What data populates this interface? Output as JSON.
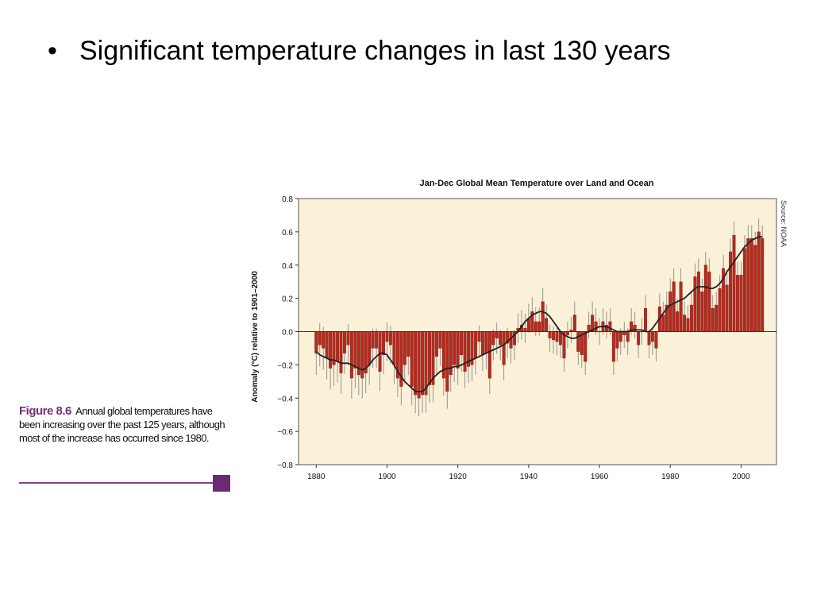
{
  "slide": {
    "bullet": "•",
    "text": "Significant temperature changes in last 130 years"
  },
  "caption": {
    "figure_label": "Figure 8.6",
    "text": "Annual global temperatures have been increasing over the past 125 years, although most of the increase has occurred since 1980."
  },
  "colors": {
    "plot_background": "#fbf1d8",
    "bar": "#b52a1e",
    "error_bar": "#8a8a8a",
    "smooth_line": "#222222",
    "caption_accent": "#7b2c7e"
  },
  "chart_data": {
    "type": "bar",
    "title": "Jan-Dec Global Mean Temperature over Land and Ocean",
    "ylabel": "Anomaly (°C) relative to 1901–2000",
    "xlabel": "",
    "source": "Source: NOAA",
    "xlim": [
      1875,
      2010
    ],
    "ylim": [
      -0.8,
      0.8
    ],
    "x_ticks": [
      1880,
      1900,
      1920,
      1940,
      1960,
      1980,
      2000
    ],
    "y_ticks": [
      0.8,
      0.6,
      0.4,
      0.2,
      0.0,
      -0.2,
      -0.4,
      -0.6,
      -0.8
    ],
    "y_tick_labels": [
      "0.8",
      "0.6",
      "0.4",
      "0.2",
      "0.0",
      "−0.2",
      "−0.4",
      "−0.6",
      "−0.8"
    ],
    "grid": false,
    "legend": "none",
    "x": [
      1880,
      1881,
      1882,
      1883,
      1884,
      1885,
      1886,
      1887,
      1888,
      1889,
      1890,
      1891,
      1892,
      1893,
      1894,
      1895,
      1896,
      1897,
      1898,
      1899,
      1900,
      1901,
      1902,
      1903,
      1904,
      1905,
      1906,
      1907,
      1908,
      1909,
      1910,
      1911,
      1912,
      1913,
      1914,
      1915,
      1916,
      1917,
      1918,
      1919,
      1920,
      1921,
      1922,
      1923,
      1924,
      1925,
      1926,
      1927,
      1928,
      1929,
      1930,
      1931,
      1932,
      1933,
      1934,
      1935,
      1936,
      1937,
      1938,
      1939,
      1940,
      1941,
      1942,
      1943,
      1944,
      1945,
      1946,
      1947,
      1948,
      1949,
      1950,
      1951,
      1952,
      1953,
      1954,
      1955,
      1956,
      1957,
      1958,
      1959,
      1960,
      1961,
      1962,
      1963,
      1964,
      1965,
      1966,
      1967,
      1968,
      1969,
      1970,
      1971,
      1972,
      1973,
      1974,
      1975,
      1976,
      1977,
      1978,
      1979,
      1980,
      1981,
      1982,
      1983,
      1984,
      1985,
      1986,
      1987,
      1988,
      1989,
      1990,
      1991,
      1992,
      1993,
      1994,
      1995,
      1996,
      1997,
      1998,
      1999,
      2000,
      2001,
      2002,
      2003,
      2004,
      2005,
      2006
    ],
    "series": [
      {
        "values": [
          -0.13,
          -0.08,
          -0.1,
          -0.16,
          -0.22,
          -0.2,
          -0.18,
          -0.25,
          -0.13,
          -0.08,
          -0.28,
          -0.22,
          -0.26,
          -0.28,
          -0.25,
          -0.2,
          -0.1,
          -0.1,
          -0.24,
          -0.14,
          -0.06,
          -0.08,
          -0.2,
          -0.28,
          -0.33,
          -0.2,
          -0.15,
          -0.33,
          -0.38,
          -0.4,
          -0.38,
          -0.38,
          -0.32,
          -0.32,
          -0.15,
          -0.1,
          -0.28,
          -0.36,
          -0.26,
          -0.2,
          -0.22,
          -0.14,
          -0.24,
          -0.21,
          -0.2,
          -0.16,
          -0.06,
          -0.14,
          -0.13,
          -0.28,
          -0.08,
          -0.04,
          -0.08,
          -0.2,
          -0.07,
          -0.1,
          -0.08,
          0.02,
          0.04,
          0.02,
          0.08,
          0.12,
          0.06,
          0.06,
          0.18,
          0.08,
          -0.04,
          -0.05,
          -0.06,
          -0.08,
          -0.16,
          -0.02,
          0.01,
          0.1,
          -0.12,
          -0.14,
          -0.18,
          0.04,
          0.1,
          0.06,
          0.0,
          0.06,
          0.04,
          0.06,
          -0.18,
          -0.1,
          -0.06,
          -0.02,
          -0.06,
          0.06,
          0.04,
          -0.08,
          0.0,
          0.14,
          -0.08,
          -0.06,
          -0.1,
          0.15,
          0.1,
          0.16,
          0.24,
          0.3,
          0.12,
          0.3,
          0.1,
          0.08,
          0.16,
          0.33,
          0.36,
          0.24,
          0.4,
          0.36,
          0.14,
          0.16,
          0.26,
          0.38,
          0.28,
          0.48,
          0.58,
          0.34,
          0.34,
          0.5,
          0.56,
          0.56,
          0.52,
          0.6,
          0.56
        ]
      }
    ],
    "smoothed": [
      -0.12,
      -0.14,
      -0.15,
      -0.16,
      -0.17,
      -0.17,
      -0.18,
      -0.19,
      -0.19,
      -0.19,
      -0.2,
      -0.21,
      -0.22,
      -0.23,
      -0.22,
      -0.2,
      -0.17,
      -0.15,
      -0.13,
      -0.13,
      -0.14,
      -0.17,
      -0.2,
      -0.24,
      -0.27,
      -0.3,
      -0.32,
      -0.34,
      -0.36,
      -0.36,
      -0.36,
      -0.34,
      -0.31,
      -0.28,
      -0.26,
      -0.24,
      -0.23,
      -0.22,
      -0.22,
      -0.21,
      -0.21,
      -0.2,
      -0.19,
      -0.18,
      -0.17,
      -0.16,
      -0.15,
      -0.14,
      -0.13,
      -0.12,
      -0.11,
      -0.1,
      -0.09,
      -0.08,
      -0.06,
      -0.04,
      -0.02,
      0.0,
      0.03,
      0.06,
      0.08,
      0.1,
      0.11,
      0.12,
      0.12,
      0.11,
      0.09,
      0.06,
      0.03,
      0.0,
      -0.02,
      -0.03,
      -0.04,
      -0.04,
      -0.03,
      -0.02,
      -0.01,
      0.0,
      0.01,
      0.02,
      0.03,
      0.03,
      0.03,
      0.02,
      0.01,
      0.0,
      0.0,
      0.0,
      0.0,
      0.01,
      0.01,
      0.01,
      0.01,
      0.0,
      0.0,
      0.02,
      0.05,
      0.08,
      0.11,
      0.14,
      0.16,
      0.17,
      0.18,
      0.19,
      0.2,
      0.22,
      0.24,
      0.26,
      0.27,
      0.27,
      0.27,
      0.26,
      0.26,
      0.27,
      0.29,
      0.32,
      0.36,
      0.39,
      0.42,
      0.45,
      0.48,
      0.51,
      0.53,
      0.55,
      0.56,
      0.57,
      0.57
    ]
  }
}
